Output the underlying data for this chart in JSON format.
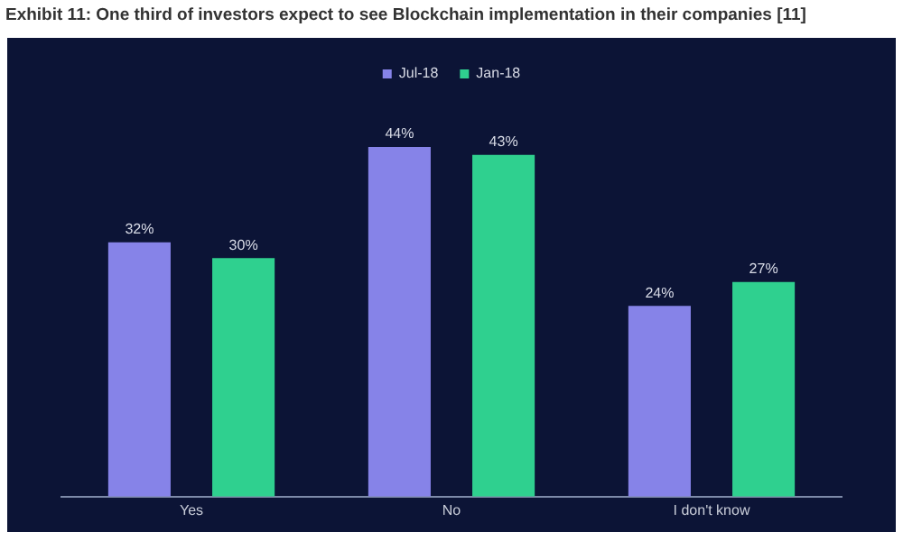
{
  "chart_data": {
    "type": "bar",
    "title": "Exhibit 11: One third of investors expect to see Blockchain implementation in their companies [11]",
    "categories": [
      "Yes",
      "No",
      "I don't know"
    ],
    "series": [
      {
        "name": "Jul-18",
        "color": "#8683e8",
        "values": [
          32,
          44,
          24
        ],
        "value_labels": [
          "32%",
          "44%",
          "24%"
        ]
      },
      {
        "name": "Jan-18",
        "color": "#2fd08f",
        "values": [
          30,
          43,
          27
        ],
        "value_labels": [
          "30%",
          "43%",
          "27%"
        ]
      }
    ],
    "legend": "top",
    "grid": false
  }
}
